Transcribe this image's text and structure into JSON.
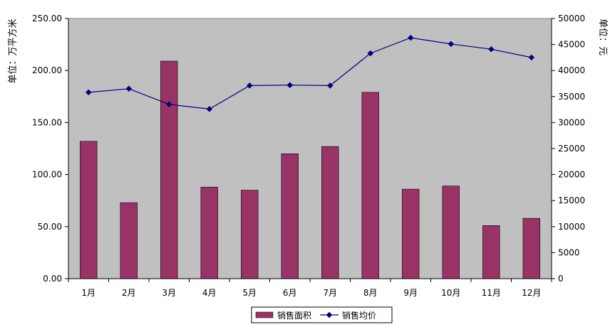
{
  "chart_data": {
    "type": "bar",
    "categories": [
      "1月",
      "2月",
      "3月",
      "4月",
      "5月",
      "6月",
      "7月",
      "8月",
      "9月",
      "10月",
      "11月",
      "12月"
    ],
    "ylabel_left": "单位：万平方米",
    "ylabel_right": "单位：元",
    "ylim_left": [
      0,
      250
    ],
    "ylim_right": [
      0,
      50000
    ],
    "yticks_left": [
      "0.00",
      "50.00",
      "100.00",
      "150.00",
      "200.00",
      "250.00"
    ],
    "yticks_right": [
      "0",
      "5000",
      "10000",
      "15000",
      "20000",
      "25000",
      "30000",
      "35000",
      "40000",
      "45000",
      "50000"
    ],
    "grid": false,
    "legend_placement": "bottom",
    "series": [
      {
        "name": "销售面积",
        "type": "bar",
        "axis": "left",
        "color": "#993366",
        "values": [
          132,
          73,
          209,
          88,
          85,
          120,
          127,
          179,
          86,
          89,
          51,
          58
        ]
      },
      {
        "name": "销售均价",
        "type": "line",
        "axis": "right",
        "color": "#000080",
        "values": [
          35800,
          36500,
          33500,
          32600,
          37100,
          37200,
          37100,
          43300,
          46300,
          45100,
          44100,
          42500
        ]
      }
    ],
    "plot_background": "#c0c0c0"
  }
}
